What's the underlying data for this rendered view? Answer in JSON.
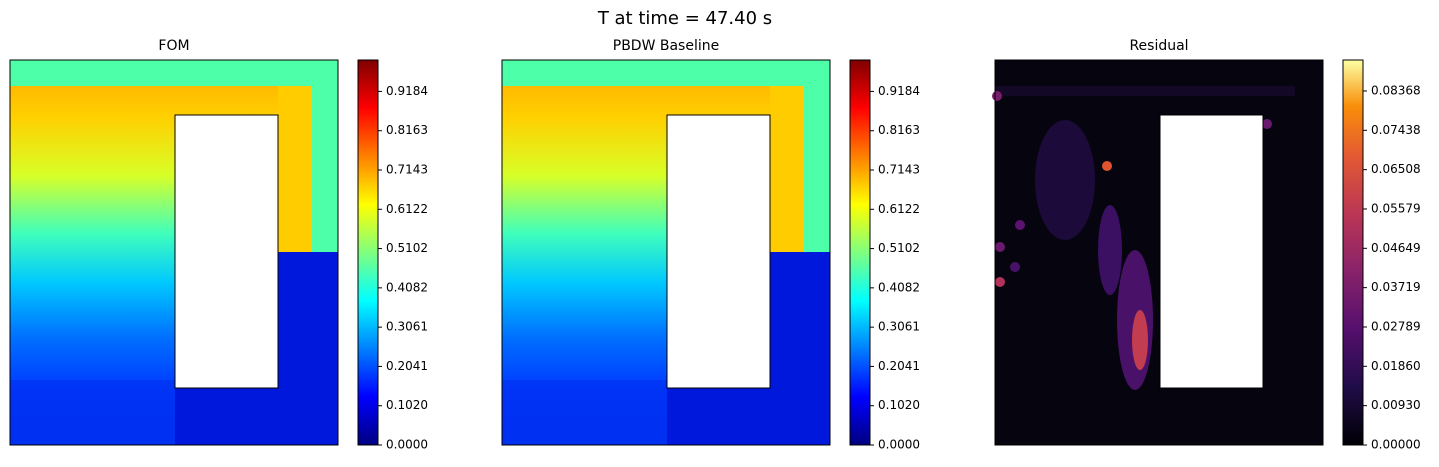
{
  "title": "T at time = 47.40 s",
  "chart_data": [
    {
      "type": "contour",
      "title": "FOM",
      "cmap": "jet",
      "clim": [
        0,
        1.0
      ],
      "cticks": [
        {
          "value": 0,
          "label": "0.0000"
        },
        {
          "value": 0.102,
          "label": "0.1020"
        },
        0.2041,
        0.3061,
        0.4082,
        {
          "value": 0.5102,
          "label": "0.5102"
        },
        0.6122,
        0.7143,
        0.8163,
        0.9184
      ]
    },
    {
      "type": "contour",
      "title": "PBDW Baseline",
      "cmap": "jet",
      "clim": [
        0,
        1.0
      ],
      "cticks": [
        {
          "value": 0,
          "label": "0.0000"
        },
        {
          "value": 0.102,
          "label": "0.1020"
        },
        0.2041,
        0.3061,
        0.4082,
        {
          "value": 0.5102,
          "label": "0.5102"
        },
        0.6122,
        0.7143,
        0.8163,
        0.9184
      ]
    },
    {
      "type": "contour",
      "title": "Residual",
      "cmap": "inferno",
      "clim": [
        0,
        0.091
      ],
      "cticks": [
        {
          "value": 0,
          "label": "0.00000"
        },
        {
          "value": 0.0093,
          "label": "0.00930"
        },
        {
          "value": 0.0186,
          "label": "0.01860"
        },
        0.02789,
        0.03719,
        0.04649,
        0.05579,
        0.06508,
        0.07438,
        0.08368
      ]
    }
  ]
}
